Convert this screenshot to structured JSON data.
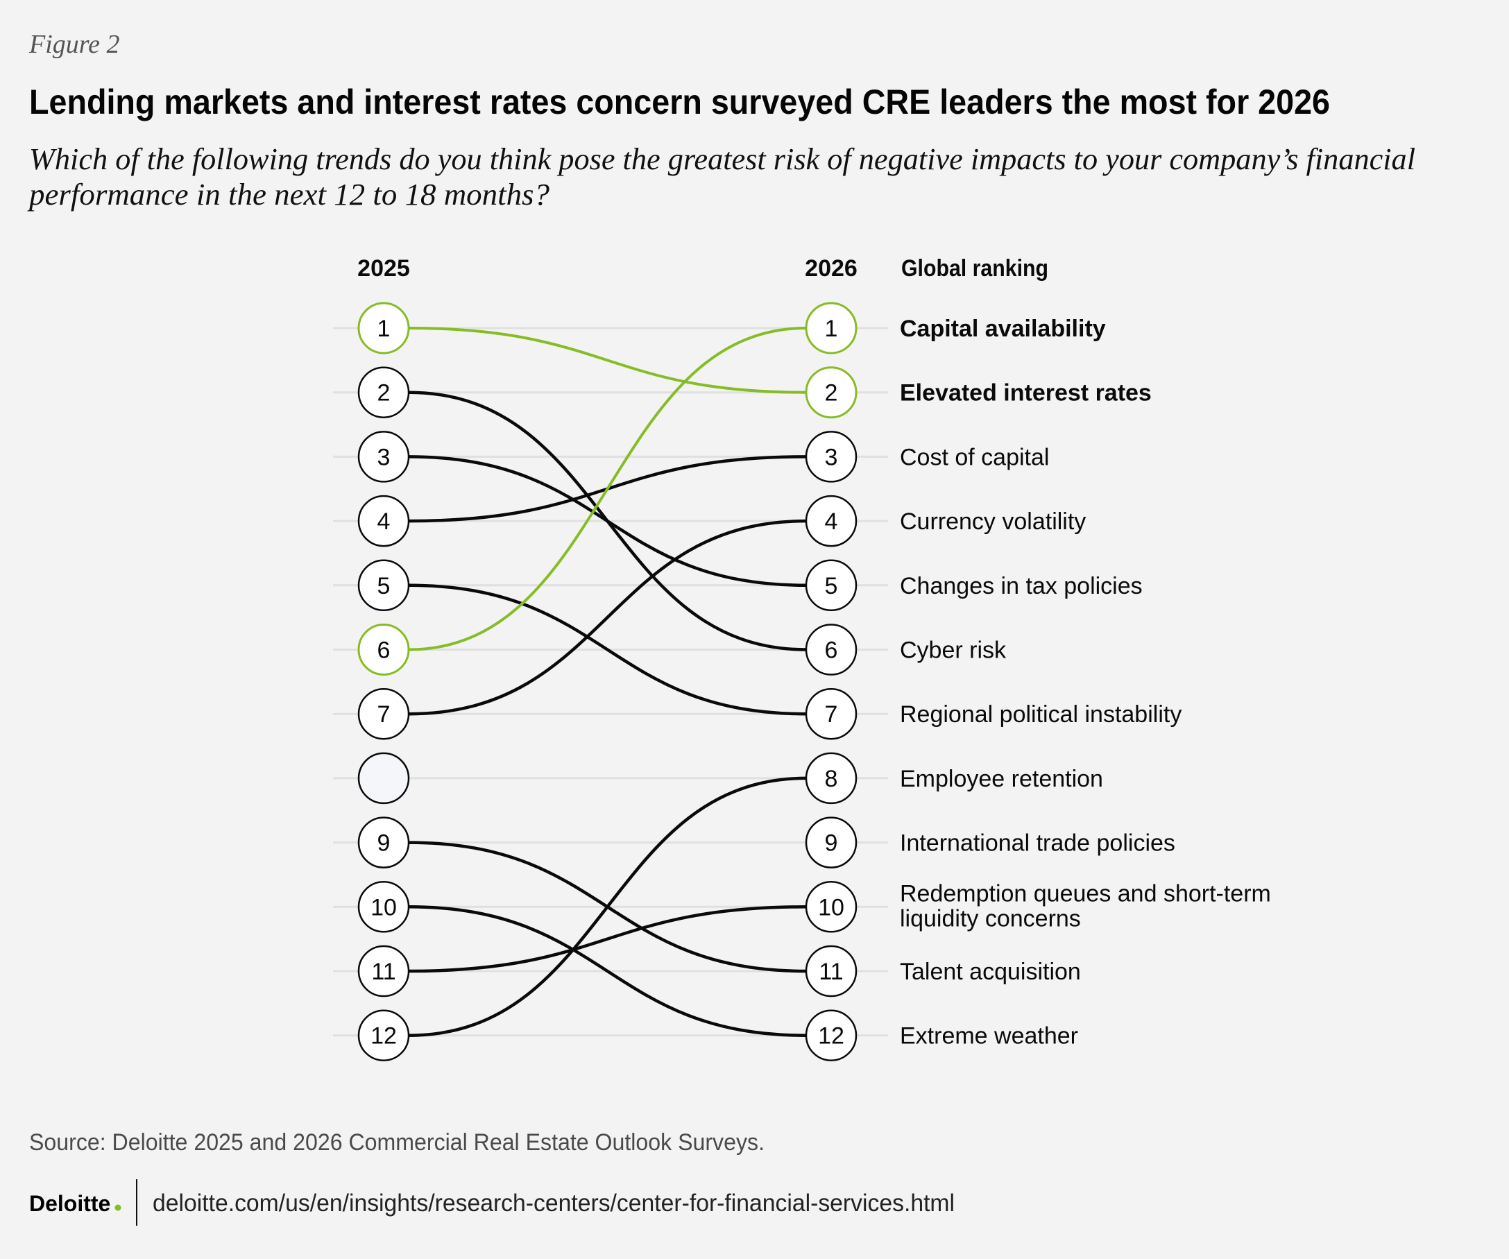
{
  "figure_label": "Figure 2",
  "title": "Lending markets and interest rates concern surveyed CRE leaders the most for 2026",
  "subtitle_lines": [
    "Which of the following trends do you think pose the greatest risk of negative impacts to your company’s financial",
    "performance in the next 12 to 18 months?"
  ],
  "colors": {
    "background": "#f3f3f3",
    "highlight": "#86bc25",
    "line": "#0a0a0a",
    "gridline": "#e0e0e0",
    "empty_node_fill": "#f4f6f9"
  },
  "chart_data": {
    "type": "slope",
    "title": "Lending markets and interest rates concern surveyed CRE leaders the most for 2026",
    "left_axis_label": "2025",
    "right_axis_label": "2026",
    "right_header": "Global ranking",
    "ranks": [
      1,
      2,
      3,
      4,
      5,
      6,
      7,
      8,
      9,
      10,
      11,
      12
    ],
    "left_empty_ranks": [
      8
    ],
    "items": [
      {
        "label": "Capital availability",
        "rank_2026": 1,
        "rank_2025": 6,
        "highlight": true
      },
      {
        "label": "Elevated interest rates",
        "rank_2026": 2,
        "rank_2025": 1,
        "highlight": true
      },
      {
        "label": "Cost of capital",
        "rank_2026": 3,
        "rank_2025": 4,
        "highlight": false
      },
      {
        "label": "Currency volatility",
        "rank_2026": 4,
        "rank_2025": 7,
        "highlight": false
      },
      {
        "label": "Changes in tax policies",
        "rank_2026": 5,
        "rank_2025": 3,
        "highlight": false
      },
      {
        "label": "Cyber risk",
        "rank_2026": 6,
        "rank_2025": 2,
        "highlight": false
      },
      {
        "label": "Regional political instability",
        "rank_2026": 7,
        "rank_2025": 5,
        "highlight": false
      },
      {
        "label": "Employee retention",
        "rank_2026": 8,
        "rank_2025": 12,
        "highlight": false
      },
      {
        "label": "International trade policies",
        "rank_2026": 9,
        "rank_2025": null,
        "highlight": false
      },
      {
        "label_lines": [
          "Redemption queues and short-term",
          "liquidity concerns"
        ],
        "label": "Redemption queues and short-term liquidity concerns",
        "rank_2026": 10,
        "rank_2025": 11,
        "highlight": false
      },
      {
        "label": "Talent acquisition",
        "rank_2026": 11,
        "rank_2025": 9,
        "highlight": false
      },
      {
        "label": "Extreme weather",
        "rank_2026": 12,
        "rank_2025": 10,
        "highlight": false
      }
    ]
  },
  "footer": {
    "source": "Source: Deloitte 2025 and 2026 Commercial Real Estate Outlook Surveys.",
    "logo_text": "Deloitte",
    "logo_dot": ".",
    "url": "deloitte.com/us/en/insights/research-centers/center-for-financial-services.html"
  }
}
